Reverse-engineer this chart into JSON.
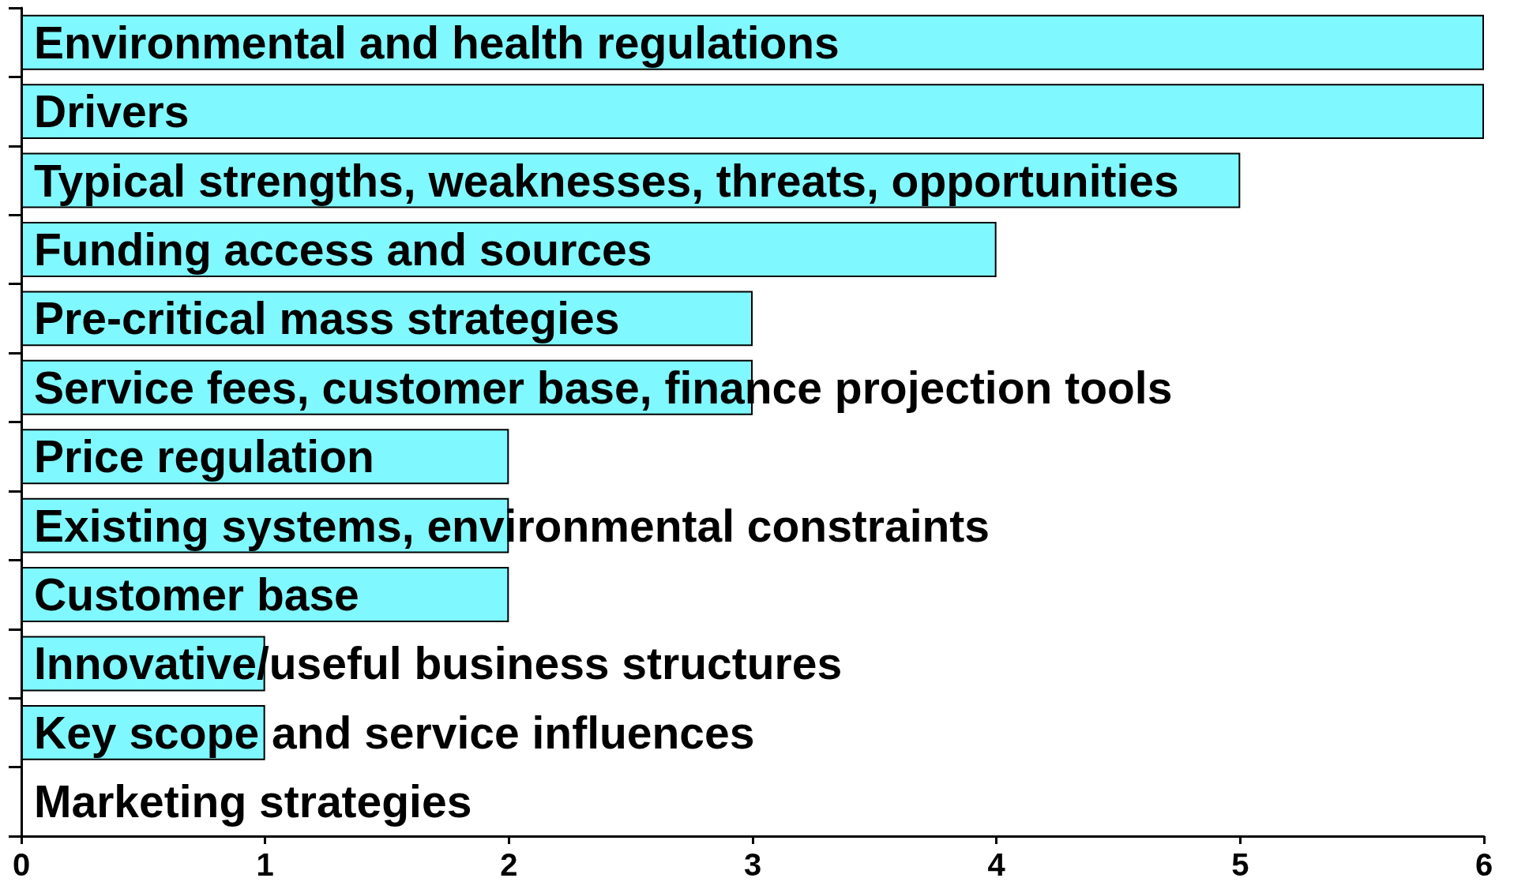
{
  "chart_data": {
    "type": "bar",
    "orientation": "horizontal",
    "categories": [
      "Environmental and health regulations",
      "Drivers",
      "Typical strengths, weaknesses, threats, opportunities",
      "Funding access and sources",
      "Pre-critical mass strategies",
      "Service fees, customer base, finance projection tools",
      "Price regulation",
      "Existing systems, environmental constraints",
      "Customer base",
      "Innovative/useful business structures",
      "Key scope and service influences",
      "Marketing strategies"
    ],
    "values": [
      6,
      6,
      5,
      4,
      3,
      3,
      2,
      2,
      2,
      1,
      1,
      0
    ],
    "color": "#80f8ff",
    "xlim": [
      0,
      6
    ],
    "xticks": [
      0,
      1,
      2,
      3,
      4,
      5,
      6
    ]
  }
}
